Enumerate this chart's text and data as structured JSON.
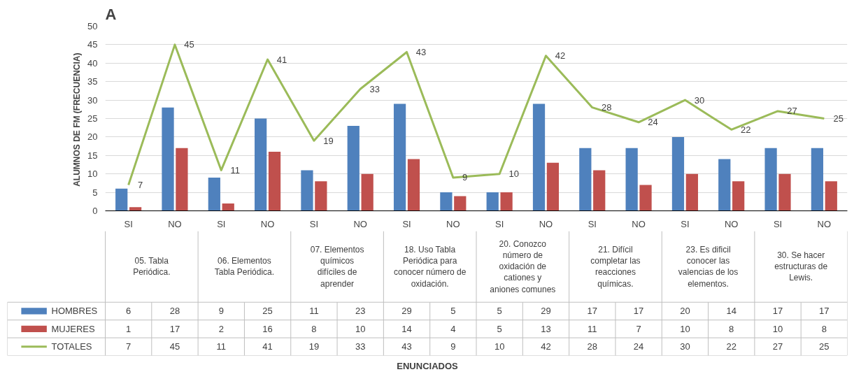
{
  "chart_data": {
    "type": "bar",
    "title": "A",
    "ylabel": "ALUMNOS DE FM  (FRECUENCIA)",
    "categories": [
      "SI",
      "NO",
      "SI",
      "NO",
      "SI",
      "NO",
      "SI",
      "NO",
      "SI",
      "NO",
      "SI",
      "NO",
      "SI",
      "NO",
      "SI",
      "NO"
    ],
    "series": [
      {
        "name": "HOMBRES",
        "color": "#4f81bd",
        "values": [
          6,
          28,
          9,
          25,
          11,
          23,
          29,
          5,
          5,
          29,
          17,
          17,
          20,
          14,
          17,
          17
        ]
      },
      {
        "name": "MUJERES",
        "color": "#c0504d",
        "values": [
          1,
          17,
          2,
          16,
          8,
          10,
          14,
          4,
          5,
          13,
          11,
          7,
          10,
          8,
          10,
          8
        ]
      },
      {
        "name": "TOTALES",
        "type": "line",
        "color": "#9bbb59",
        "values": [
          7,
          45,
          11,
          41,
          19,
          33,
          43,
          9,
          10,
          42,
          28,
          24,
          30,
          22,
          27,
          25
        ],
        "value_labels": [
          "7",
          "45",
          "11",
          "41",
          "19",
          "33",
          "43",
          "9",
          "10",
          "42",
          "28",
          "24",
          "30",
          "22",
          "27",
          "25"
        ]
      }
    ],
    "annotations": [
      "05. Tabla Periódica.",
      "06. Elementos Tabla Periódica.",
      "07. Elementos químicos difíciles de aprender",
      "18. Uso Tabla Periódica para conocer número de oxidación.",
      "20. Conozco número de oxidación de cationes y aniones comunes",
      "21. Difícil completar las reacciones químicas.",
      "23. Es dificil conocer las valencias de los elementos.",
      "30. Se hacer estructuras de Lewis.",
      "ENUNCIADOS"
    ],
    "ylim": [
      0,
      50
    ],
    "yticks": [
      0,
      5,
      10,
      15,
      20,
      25,
      30,
      35,
      40,
      45,
      50
    ],
    "grid": "y",
    "legend": "bottom",
    "data_labels": true,
    "marker": "none",
    "line_style": "solid"
  }
}
